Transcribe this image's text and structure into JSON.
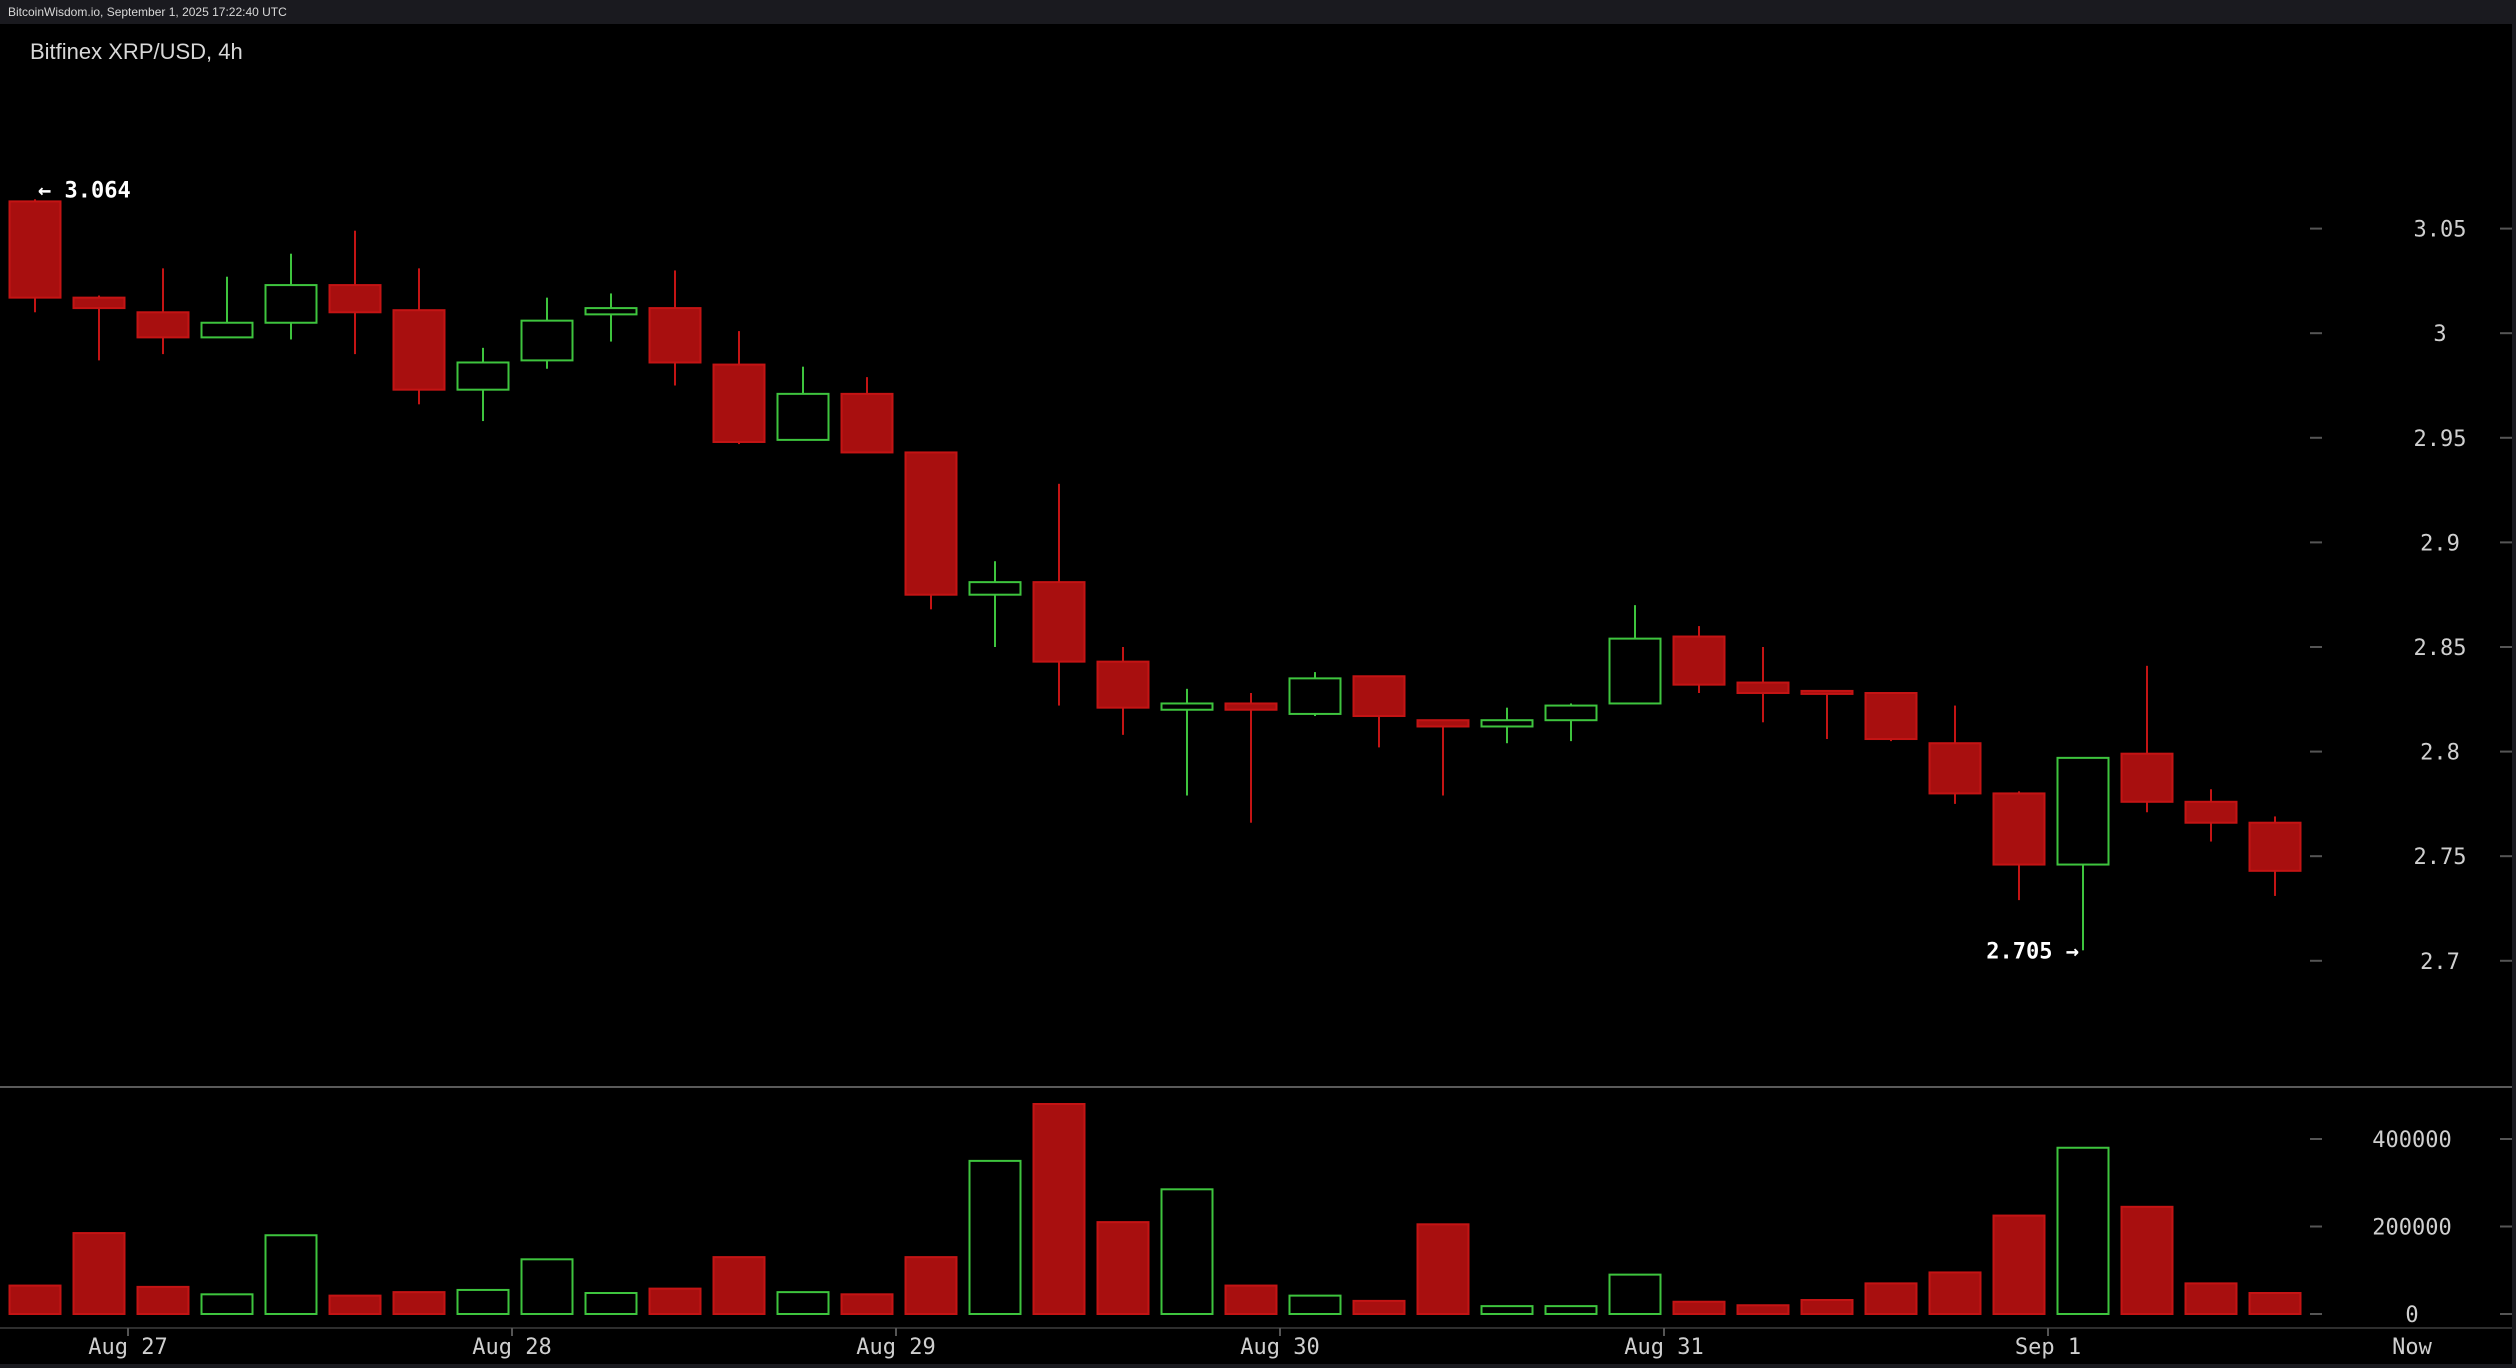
{
  "header": {
    "source_line": "BitcoinWisdom.io, September 1, 2025 17:22:40 UTC",
    "chart_title": "Bitfinex XRP/USD, 4h"
  },
  "chart_data": {
    "type": "candlestick",
    "title": "Bitfinex XRP/USD, 4h",
    "price_axis": {
      "ticks": [
        3.05,
        3,
        2.95,
        2.9,
        2.85,
        2.8,
        2.75,
        2.7
      ],
      "tick_labels": [
        "3.05",
        "3",
        "2.95",
        "2.9",
        "2.85",
        "2.8",
        "2.75",
        "2.7"
      ],
      "range": [
        2.665,
        3.1
      ],
      "position": "right"
    },
    "volume_axis": {
      "ticks": [
        400000,
        200000,
        0
      ],
      "tick_labels": [
        "400000",
        "200000",
        "0"
      ],
      "range": [
        0,
        480000
      ]
    },
    "time_labels": [
      {
        "label": "Aug 27",
        "candle_index": 2
      },
      {
        "label": "Aug 28",
        "candle_index": 8
      },
      {
        "label": "Aug 29",
        "candle_index": 14
      },
      {
        "label": "Aug 30",
        "candle_index": 20
      },
      {
        "label": "Aug 31",
        "candle_index": 26
      },
      {
        "label": "Sep 1",
        "candle_index": 32
      },
      {
        "label": "Now",
        "candle_index": 37
      }
    ],
    "annotations": [
      {
        "text": "← 3.064",
        "candle_index": 0,
        "price": 3.064,
        "kind": "high"
      },
      {
        "text": "2.705 →",
        "candle_index": 32,
        "price": 2.705,
        "kind": "low"
      }
    ],
    "colors": {
      "up": "#3ec43e",
      "down": "#c41414",
      "down_fill": "#a80f0f",
      "background": "#000000",
      "grid_tick": "#555555",
      "axis_text": "#cfcfcf"
    },
    "candles": [
      {
        "o": 3.063,
        "h": 3.064,
        "l": 3.01,
        "c": 3.017,
        "v": 65000
      },
      {
        "o": 3.017,
        "h": 3.018,
        "l": 2.987,
        "c": 3.012,
        "v": 185000
      },
      {
        "o": 3.01,
        "h": 3.031,
        "l": 2.99,
        "c": 2.998,
        "v": 62000
      },
      {
        "o": 2.998,
        "h": 3.027,
        "l": 2.998,
        "c": 3.005,
        "v": 45000
      },
      {
        "o": 3.005,
        "h": 3.038,
        "l": 2.997,
        "c": 3.023,
        "v": 180000
      },
      {
        "o": 3.023,
        "h": 3.049,
        "l": 2.99,
        "c": 3.01,
        "v": 42000
      },
      {
        "o": 3.011,
        "h": 3.031,
        "l": 2.966,
        "c": 2.973,
        "v": 50000
      },
      {
        "o": 2.973,
        "h": 2.993,
        "l": 2.958,
        "c": 2.986,
        "v": 55000
      },
      {
        "o": 2.987,
        "h": 3.017,
        "l": 2.983,
        "c": 3.006,
        "v": 125000
      },
      {
        "o": 3.009,
        "h": 3.019,
        "l": 2.996,
        "c": 3.012,
        "v": 48000
      },
      {
        "o": 3.012,
        "h": 3.03,
        "l": 2.975,
        "c": 2.986,
        "v": 58000
      },
      {
        "o": 2.985,
        "h": 3.001,
        "l": 2.947,
        "c": 2.948,
        "v": 130000
      },
      {
        "o": 2.949,
        "h": 2.984,
        "l": 2.949,
        "c": 2.971,
        "v": 50000
      },
      {
        "o": 2.971,
        "h": 2.979,
        "l": 2.943,
        "c": 2.943,
        "v": 45000
      },
      {
        "o": 2.943,
        "h": 2.943,
        "l": 2.868,
        "c": 2.875,
        "v": 130000
      },
      {
        "o": 2.875,
        "h": 2.891,
        "l": 2.85,
        "c": 2.881,
        "v": 350000
      },
      {
        "o": 2.881,
        "h": 2.928,
        "l": 2.822,
        "c": 2.843,
        "v": 480000
      },
      {
        "o": 2.843,
        "h": 2.85,
        "l": 2.808,
        "c": 2.821,
        "v": 210000
      },
      {
        "o": 2.82,
        "h": 2.83,
        "l": 2.779,
        "c": 2.823,
        "v": 285000
      },
      {
        "o": 2.823,
        "h": 2.828,
        "l": 2.766,
        "c": 2.82,
        "v": 65000
      },
      {
        "o": 2.818,
        "h": 2.838,
        "l": 2.817,
        "c": 2.835,
        "v": 42000
      },
      {
        "o": 2.836,
        "h": 2.836,
        "l": 2.802,
        "c": 2.817,
        "v": 30000
      },
      {
        "o": 2.815,
        "h": 2.815,
        "l": 2.779,
        "c": 2.812,
        "v": 205000
      },
      {
        "o": 2.812,
        "h": 2.821,
        "l": 2.804,
        "c": 2.815,
        "v": 18000
      },
      {
        "o": 2.815,
        "h": 2.823,
        "l": 2.805,
        "c": 2.822,
        "v": 18000
      },
      {
        "o": 2.823,
        "h": 2.87,
        "l": 2.823,
        "c": 2.854,
        "v": 90000
      },
      {
        "o": 2.855,
        "h": 2.86,
        "l": 2.828,
        "c": 2.832,
        "v": 28000
      },
      {
        "o": 2.833,
        "h": 2.85,
        "l": 2.814,
        "c": 2.828,
        "v": 20000
      },
      {
        "o": 2.829,
        "h": 2.829,
        "l": 2.806,
        "c": 2.828,
        "v": 32000
      },
      {
        "o": 2.828,
        "h": 2.828,
        "l": 2.805,
        "c": 2.806,
        "v": 70000
      },
      {
        "o": 2.804,
        "h": 2.822,
        "l": 2.775,
        "c": 2.78,
        "v": 95000
      },
      {
        "o": 2.78,
        "h": 2.781,
        "l": 2.729,
        "c": 2.746,
        "v": 225000
      },
      {
        "o": 2.746,
        "h": 2.797,
        "l": 2.705,
        "c": 2.797,
        "v": 380000
      },
      {
        "o": 2.799,
        "h": 2.841,
        "l": 2.771,
        "c": 2.776,
        "v": 245000
      },
      {
        "o": 2.776,
        "h": 2.782,
        "l": 2.757,
        "c": 2.766,
        "v": 70000
      },
      {
        "o": 2.766,
        "h": 2.769,
        "l": 2.731,
        "c": 2.743,
        "v": 48000
      }
    ]
  }
}
